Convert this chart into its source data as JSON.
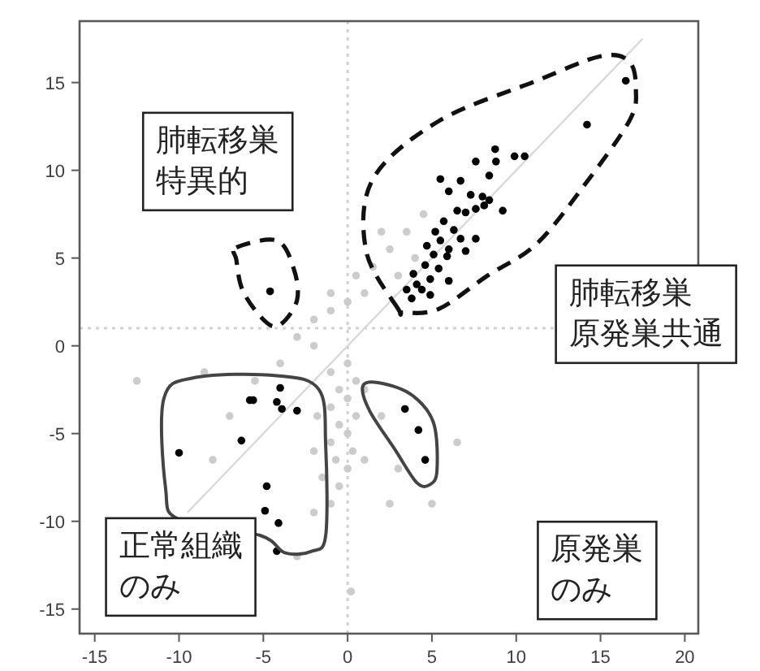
{
  "chart_data": {
    "type": "scatter",
    "marker": "circle",
    "xlim": [
      -15.9,
      20.8
    ],
    "ylim": [
      -16.4,
      18.5
    ],
    "xticks": [
      -15,
      -10,
      -5,
      0,
      5,
      10,
      15,
      20
    ],
    "yticks": [
      -15,
      -10,
      -5,
      0,
      5,
      10,
      15
    ],
    "ref_lines": [
      {
        "axis": "x",
        "value": 0,
        "color": "#d0d0d0",
        "line_style": "dotted"
      },
      {
        "axis": "y",
        "value": 1,
        "color": "#d0d0d0",
        "line_style": "dotted"
      }
    ],
    "series": [
      {
        "color": "#cccccc",
        "x": [
          0,
          -1,
          0.5,
          -0.5,
          0,
          -1,
          0.5,
          -0.5,
          0,
          -1,
          0.3,
          -0.7,
          0,
          -1.5,
          -0.5,
          1,
          -1.8,
          -2,
          1,
          -1,
          -3,
          -2,
          -1,
          0,
          1,
          1.5,
          3,
          2.5,
          4,
          3.5,
          0.5,
          -1,
          2,
          4.5,
          -2,
          -4,
          -5.5,
          -7,
          -8,
          -12.5,
          -8.5,
          2,
          3,
          5,
          6.5,
          2.5,
          -3,
          -2,
          0.2
        ],
        "values": [
          -1,
          -1.5,
          -2,
          -2.5,
          -3,
          -3.5,
          -4,
          -4.5,
          -5,
          -5.5,
          -6,
          -6.5,
          -7,
          -7.5,
          -8,
          -2.5,
          -4,
          -6,
          -6.5,
          -9,
          0.5,
          1.5,
          2,
          2.5,
          3,
          4.5,
          4,
          5.5,
          5,
          6.5,
          4,
          3,
          6.5,
          7.5,
          0,
          -1,
          -2,
          -4,
          -6.5,
          -2,
          -1.5,
          -4,
          -7,
          -9,
          -5.5,
          -9,
          -12,
          -9.5,
          -14
        ]
      },
      {
        "color": "#000000",
        "x": [
          16.5,
          14.2,
          10.5,
          9.9,
          8.75,
          8.8,
          8.4,
          7.6,
          5.5,
          6.7,
          6.0,
          7.3,
          8.0,
          8.4,
          7.6,
          9.2,
          6.5,
          5.7,
          6.3,
          5.2,
          5.5,
          6.7,
          7.6,
          6.0,
          7.0,
          5.1,
          4.6,
          5.4,
          3.9,
          4.9,
          4.1,
          6.0,
          3.5,
          4.4,
          3.8,
          4.9,
          8.1,
          7.0,
          4.7,
          5.9,
          -4.6,
          -10.0,
          -5.8,
          -5.6,
          -4.0,
          -4.2,
          -3.9,
          -3.0,
          -6.3,
          -4.8,
          -4.9,
          -4.1,
          -4.2,
          3.4,
          4.2,
          4.6
        ],
        "values": [
          15.1,
          12.6,
          10.8,
          10.8,
          11.2,
          10.5,
          9.7,
          10.5,
          9.5,
          9.4,
          8.8,
          8.6,
          8.5,
          8.3,
          7.8,
          7.7,
          7.7,
          7.1,
          6.6,
          6.5,
          6.0,
          6.1,
          6.1,
          5.5,
          5.4,
          5.2,
          4.6,
          4.4,
          4.1,
          3.8,
          3.5,
          3.7,
          3.2,
          3.2,
          2.7,
          2.9,
          8.0,
          7.6,
          5.7,
          5.1,
          3.1,
          -6.1,
          -3.1,
          -3.1,
          -2.4,
          -3.2,
          -3.6,
          -3.7,
          -5.4,
          -8.0,
          -9.4,
          -10.1,
          -11.7,
          -3.6,
          -4.8,
          -6.5
        ]
      },
      {
        "type": "line",
        "marker": "none",
        "color": "#d9d9d9",
        "x": [
          -9.5,
          17.5
        ],
        "values": [
          -9.5,
          17.5
        ]
      }
    ],
    "annotations": [
      "肺転移巣特異的",
      "肺転移巣原発巣共通",
      "正常組織のみ",
      "原発巣のみ"
    ]
  }
}
